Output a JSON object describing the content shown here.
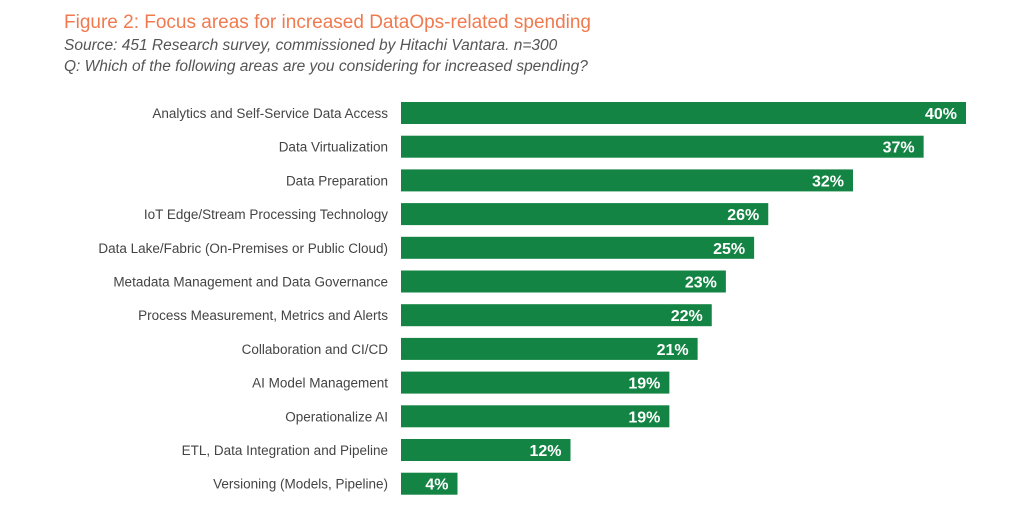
{
  "chart_data": {
    "type": "bar",
    "orientation": "horizontal",
    "title": "Figure 2: Focus areas for increased DataOps-related spending",
    "subtitle": "Source: 451 Research survey, commissioned by Hitachi Vantara. n=300",
    "question": "Q: Which of the following areas are you considering for increased spending?",
    "categories": [
      "Analytics and Self-Service Data Access",
      "Data Virtualization",
      "Data Preparation",
      "IoT Edge/Stream Processing Technology",
      "Data Lake/Fabric (On-Premises or Public Cloud)",
      "Metadata Management and Data Governance",
      "Process Measurement, Metrics and Alerts",
      "Collaboration and CI/CD",
      "AI Model Management",
      "Operationalize AI",
      "ETL, Data Integration and Pipeline",
      "Versioning (Models, Pipeline)"
    ],
    "values": [
      40,
      37,
      32,
      26,
      25,
      23,
      22,
      21,
      19,
      19,
      12,
      4
    ],
    "value_labels": [
      "40%",
      "37%",
      "32%",
      "26%",
      "25%",
      "23%",
      "22%",
      "21%",
      "19%",
      "19%",
      "12%",
      "4%"
    ],
    "unit": "%",
    "xlim": [
      0,
      40
    ],
    "grid": false,
    "legend": "none",
    "colors": {
      "bar": "#138443",
      "title": "#f07a4f",
      "label_text": "#444444",
      "value_text": "#ffffff"
    }
  }
}
